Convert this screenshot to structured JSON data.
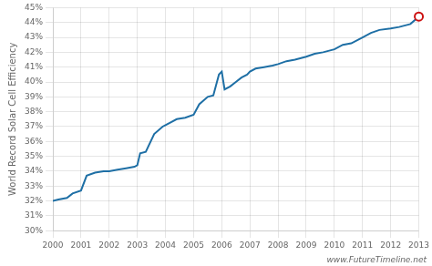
{
  "chart_data": {
    "type": "line",
    "ylabel": "World Record Solar Cell Efficiency",
    "annotation": "www.FutureTimeline.net",
    "x": [
      2000,
      2000.2,
      2000.5,
      2000.7,
      2001.0,
      2001.2,
      2001.5,
      2001.8,
      2002.0,
      2002.3,
      2002.6,
      2002.9,
      2003.0,
      2003.1,
      2003.3,
      2003.6,
      2003.9,
      2004.0,
      2004.2,
      2004.4,
      2004.7,
      2005.0,
      2005.2,
      2005.5,
      2005.7,
      2005.9,
      2006.0,
      2006.1,
      2006.3,
      2006.5,
      2006.7,
      2006.9,
      2007.0,
      2007.2,
      2007.5,
      2007.8,
      2008.0,
      2008.3,
      2008.6,
      2009.0,
      2009.3,
      2009.6,
      2010.0,
      2010.3,
      2010.6,
      2011.0,
      2011.3,
      2011.6,
      2012.0,
      2012.3,
      2012.7,
      2013.0
    ],
    "series": [
      {
        "color": "#1e6fa5",
        "marker": "none",
        "values": [
          32.0,
          32.1,
          32.2,
          32.5,
          32.7,
          33.7,
          33.9,
          34.0,
          34.0,
          34.1,
          34.2,
          34.3,
          34.4,
          35.2,
          35.3,
          36.5,
          37.0,
          37.1,
          37.3,
          37.5,
          37.6,
          37.8,
          38.5,
          39.0,
          39.1,
          40.5,
          40.7,
          39.5,
          39.7,
          40.0,
          40.3,
          40.5,
          40.7,
          40.9,
          41.0,
          41.1,
          41.2,
          41.4,
          41.5,
          41.7,
          41.9,
          42.0,
          42.2,
          42.5,
          42.6,
          43.0,
          43.3,
          43.5,
          43.6,
          43.7,
          43.9,
          44.4
        ]
      },
      {
        "type": "scatter",
        "color": "#cc1111",
        "marker": "circle",
        "values": [
          null,
          null,
          null,
          null,
          null,
          null,
          null,
          null,
          null,
          null,
          null,
          null,
          null,
          null,
          null,
          null,
          null,
          null,
          null,
          null,
          null,
          null,
          null,
          null,
          null,
          null,
          null,
          null,
          null,
          null,
          null,
          null,
          null,
          null,
          null,
          null,
          null,
          null,
          null,
          null,
          null,
          null,
          null,
          null,
          null,
          null,
          null,
          null,
          null,
          null,
          null,
          44.4
        ]
      }
    ],
    "xlim": [
      2000,
      2013
    ],
    "xticks": [
      2000,
      2001,
      2002,
      2003,
      2004,
      2005,
      2006,
      2007,
      2008,
      2009,
      2010,
      2011,
      2012,
      2013
    ],
    "ylim": [
      30,
      45
    ],
    "yticks": [
      {
        "value": 30,
        "label": "30%"
      },
      {
        "value": 31,
        "label": "31%"
      },
      {
        "value": 32,
        "label": "32%"
      },
      {
        "value": 33,
        "label": "33%"
      },
      {
        "value": 34,
        "label": "34%"
      },
      {
        "value": 35,
        "label": "35%"
      },
      {
        "value": 36,
        "label": "36%"
      },
      {
        "value": 37,
        "label": "37%"
      },
      {
        "value": 38,
        "label": "38%"
      },
      {
        "value": 39,
        "label": "39%"
      },
      {
        "value": 40,
        "label": "40%"
      },
      {
        "value": 41,
        "label": "41%"
      },
      {
        "value": 42,
        "label": "42%"
      },
      {
        "value": 43,
        "label": "43%"
      },
      {
        "value": 44,
        "label": "44%"
      },
      {
        "value": 45,
        "label": "45%"
      }
    ],
    "grid": true
  }
}
